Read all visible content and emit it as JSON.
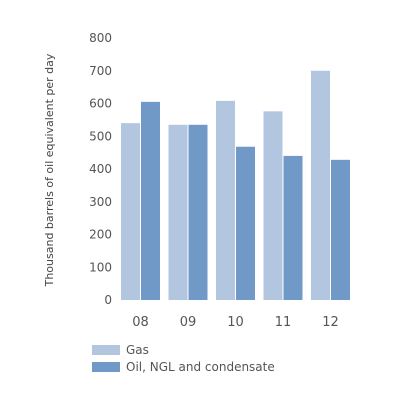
{
  "chart_data": {
    "type": "bar",
    "categories": [
      "08",
      "09",
      "10",
      "11",
      "12"
    ],
    "series": [
      {
        "name": "Gas",
        "color": "#b3c6e0",
        "values": [
          540,
          535,
          608,
          576,
          700
        ]
      },
      {
        "name": "Oil, NGL and condensate",
        "color": "#7099c8",
        "values": [
          605,
          535,
          468,
          440,
          428
        ]
      }
    ],
    "ylabel": "Thousand barrels of oil equivalent per day",
    "xlabel": "",
    "ylim": [
      0,
      800
    ],
    "yticks": [
      0,
      100,
      200,
      300,
      400,
      500,
      600,
      700,
      800
    ],
    "grid": false,
    "legend_position": "bottom-left"
  }
}
